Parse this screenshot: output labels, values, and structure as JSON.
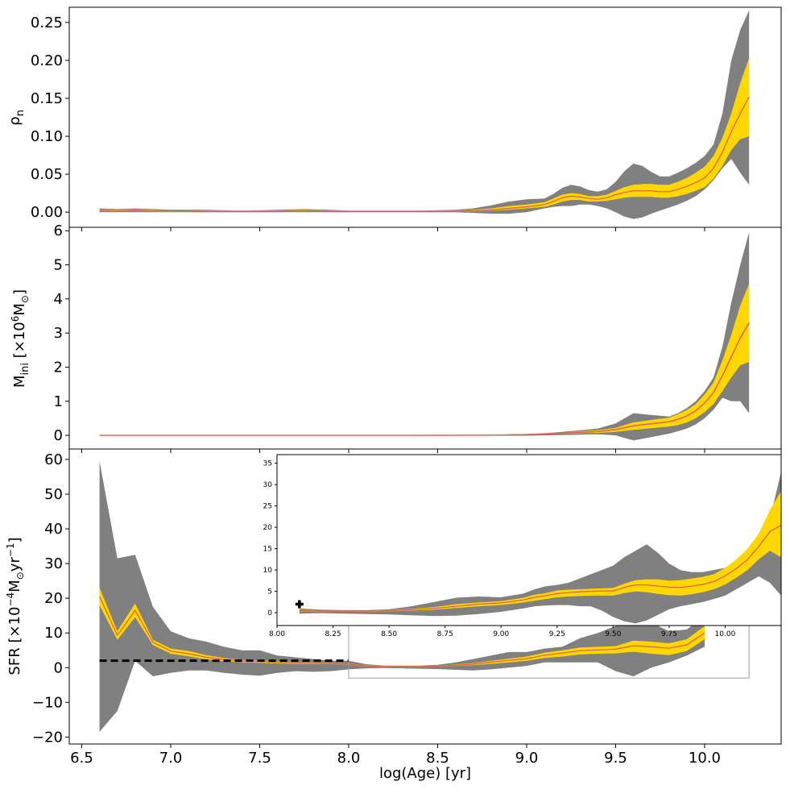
{
  "chart_data": [
    {
      "type": "area",
      "panel": "top",
      "ylabel_base": "ρ",
      "ylabel_sub": "n",
      "ylim": [
        -0.02,
        0.27
      ],
      "yticks": [
        "0.00",
        "0.05",
        "0.10",
        "0.15",
        "0.20",
        "0.25"
      ],
      "x": [
        6.6,
        6.7,
        6.8,
        6.9,
        7.0,
        7.2,
        7.4,
        7.6,
        7.75,
        7.9,
        8.0,
        8.2,
        8.4,
        8.6,
        8.7,
        8.8,
        8.9,
        9.0,
        9.1,
        9.15,
        9.2,
        9.25,
        9.3,
        9.35,
        9.4,
        9.45,
        9.5,
        9.55,
        9.6,
        9.65,
        9.7,
        9.75,
        9.8,
        9.85,
        9.9,
        9.95,
        10.0,
        10.05,
        10.1,
        10.15,
        10.2,
        10.25
      ],
      "series": [
        {
          "name": "outer band upper",
          "values": [
            0.005,
            0.004,
            0.005,
            0.004,
            0.003,
            0.003,
            0.002,
            0.003,
            0.004,
            0.003,
            0.002,
            0.002,
            0.002,
            0.003,
            0.005,
            0.009,
            0.014,
            0.017,
            0.018,
            0.024,
            0.032,
            0.036,
            0.034,
            0.029,
            0.027,
            0.03,
            0.04,
            0.054,
            0.064,
            0.061,
            0.053,
            0.047,
            0.047,
            0.052,
            0.058,
            0.065,
            0.074,
            0.089,
            0.13,
            0.2,
            0.24,
            0.266
          ]
        },
        {
          "name": "inner band upper",
          "values": [
            0.004,
            0.003,
            0.004,
            0.003,
            0.002,
            0.002,
            0.002,
            0.002,
            0.003,
            0.002,
            0.002,
            0.002,
            0.002,
            0.002,
            0.003,
            0.005,
            0.008,
            0.01,
            0.013,
            0.018,
            0.023,
            0.025,
            0.024,
            0.021,
            0.021,
            0.023,
            0.028,
            0.033,
            0.036,
            0.037,
            0.037,
            0.036,
            0.036,
            0.04,
            0.045,
            0.052,
            0.06,
            0.074,
            0.098,
            0.13,
            0.17,
            0.203
          ]
        },
        {
          "name": "median",
          "values": [
            0.003,
            0.002,
            0.003,
            0.002,
            0.002,
            0.001,
            0.001,
            0.001,
            0.002,
            0.001,
            0.001,
            0.001,
            0.001,
            0.001,
            0.002,
            0.003,
            0.005,
            0.007,
            0.01,
            0.014,
            0.019,
            0.021,
            0.02,
            0.018,
            0.017,
            0.019,
            0.023,
            0.026,
            0.028,
            0.028,
            0.028,
            0.027,
            0.027,
            0.03,
            0.034,
            0.039,
            0.045,
            0.058,
            0.079,
            0.106,
            0.13,
            0.152
          ]
        },
        {
          "name": "inner band lower",
          "values": [
            0.002,
            0.001,
            0.002,
            0.001,
            0.001,
            0.001,
            0.001,
            0.001,
            0.001,
            0.001,
            0.001,
            0.001,
            0.001,
            0.001,
            0.001,
            0.002,
            0.003,
            0.005,
            0.007,
            0.01,
            0.014,
            0.016,
            0.016,
            0.014,
            0.014,
            0.015,
            0.017,
            0.019,
            0.02,
            0.02,
            0.02,
            0.019,
            0.019,
            0.021,
            0.024,
            0.028,
            0.033,
            0.044,
            0.061,
            0.082,
            0.096,
            0.1
          ]
        },
        {
          "name": "outer band lower",
          "values": [
            0.0,
            0.0,
            0.0,
            0.0,
            0.0,
            0.0,
            0.0,
            0.0,
            0.0,
            0.0,
            0.0,
            0.0,
            0.0,
            0.0,
            -0.001,
            -0.002,
            -0.002,
            0.0,
            0.005,
            0.007,
            0.008,
            0.008,
            0.01,
            0.01,
            0.008,
            0.005,
            0.0,
            -0.006,
            -0.009,
            -0.007,
            -0.002,
            0.002,
            0.006,
            0.01,
            0.015,
            0.021,
            0.03,
            0.042,
            0.058,
            0.07,
            0.052,
            0.036
          ]
        }
      ]
    },
    {
      "type": "area",
      "panel": "middle",
      "ylabel_base": "M",
      "ylabel_sub": "ini",
      "ylabel_unit": "[×10",
      "ylabel_exp": "6",
      "ylabel_unit2": "M",
      "ylabel_close": "]",
      "ylim": [
        -0.4,
        6.1
      ],
      "yticks": [
        "0",
        "1",
        "2",
        "3",
        "4",
        "5",
        "6"
      ],
      "x": [
        6.6,
        7.0,
        7.5,
        8.0,
        8.5,
        8.8,
        9.0,
        9.1,
        9.2,
        9.3,
        9.4,
        9.5,
        9.6,
        9.7,
        9.8,
        9.85,
        9.9,
        9.95,
        10.0,
        10.05,
        10.1,
        10.15,
        10.2,
        10.25
      ],
      "series": [
        {
          "name": "outer band upper",
          "values": [
            0,
            0,
            0,
            0,
            0.002,
            0.02,
            0.04,
            0.06,
            0.1,
            0.15,
            0.2,
            0.35,
            0.65,
            0.6,
            0.55,
            0.65,
            0.8,
            1.0,
            1.3,
            1.7,
            2.6,
            3.9,
            5.0,
            5.95
          ]
        },
        {
          "name": "inner band upper",
          "values": [
            0,
            0,
            0,
            0,
            0.001,
            0.01,
            0.03,
            0.05,
            0.08,
            0.12,
            0.15,
            0.22,
            0.38,
            0.45,
            0.52,
            0.62,
            0.74,
            0.92,
            1.2,
            1.55,
            2.2,
            2.95,
            3.8,
            4.45
          ]
        },
        {
          "name": "median",
          "values": [
            0,
            0,
            0,
            0,
            0.001,
            0.007,
            0.02,
            0.04,
            0.06,
            0.09,
            0.11,
            0.17,
            0.28,
            0.34,
            0.4,
            0.47,
            0.57,
            0.72,
            0.95,
            1.25,
            1.75,
            2.3,
            2.85,
            3.3
          ]
        },
        {
          "name": "inner band lower",
          "values": [
            0,
            0,
            0,
            0,
            0.0,
            0.004,
            0.012,
            0.025,
            0.04,
            0.06,
            0.07,
            0.1,
            0.16,
            0.21,
            0.26,
            0.3,
            0.38,
            0.5,
            0.68,
            0.92,
            1.3,
            1.7,
            2.05,
            2.15
          ]
        },
        {
          "name": "outer band lower",
          "values": [
            0,
            0,
            0,
            0,
            -0.002,
            -0.01,
            -0.01,
            0.0,
            0.01,
            0.02,
            0.03,
            0.0,
            -0.15,
            -0.05,
            0.05,
            0.12,
            0.2,
            0.32,
            0.5,
            0.75,
            1.1,
            1.0,
            1.0,
            0.65
          ]
        }
      ]
    },
    {
      "type": "area",
      "panel": "bottom",
      "xlabel": "log(Age) [yr]",
      "ylabel": "SFR [×10",
      "ylabel_exp": "−4",
      "ylabel_unit": "M",
      "ylabel_yr": "yr",
      "ylabel_exp2": "−1",
      "ylabel_close": "]",
      "xlim": [
        6.43,
        10.43
      ],
      "ylim": [
        -22,
        63
      ],
      "xticks": [
        "6.5",
        "7.0",
        "7.5",
        "8.0",
        "8.5",
        "9.0",
        "9.5",
        "10.0"
      ],
      "yticks": [
        "−20",
        "−10",
        "0",
        "10",
        "20",
        "30",
        "40",
        "50",
        "60"
      ],
      "reference_line": {
        "y": 2,
        "x_from": 6.6,
        "x_to": 8.0,
        "style": "dashed"
      },
      "x": [
        6.6,
        6.7,
        6.8,
        6.9,
        7.0,
        7.1,
        7.2,
        7.3,
        7.4,
        7.5,
        7.6,
        7.7,
        7.8,
        7.9,
        8.0,
        8.1,
        8.2,
        8.3,
        8.4,
        8.5,
        8.6,
        8.7,
        8.8,
        8.9,
        9.0,
        9.1,
        9.2,
        9.3,
        9.4,
        9.5,
        9.6,
        9.7,
        9.8,
        9.9,
        10.0
      ],
      "series": [
        {
          "name": "outer band upper",
          "values": [
            59.5,
            31.5,
            32.5,
            17.5,
            10.5,
            8.5,
            7.5,
            6.0,
            5.0,
            5.0,
            3.5,
            3.0,
            2.5,
            2.0,
            2.0,
            1.0,
            0.6,
            0.6,
            0.6,
            0.8,
            1.5,
            2.5,
            3.5,
            4.5,
            4.5,
            5.5,
            6.0,
            8.5,
            10.0,
            12.0,
            16.0,
            13.0,
            10.5,
            11.0,
            15.0
          ]
        },
        {
          "name": "inner band upper",
          "values": [
            23.0,
            10.5,
            18.5,
            8.0,
            5.5,
            4.8,
            3.6,
            2.8,
            2.2,
            2.1,
            1.8,
            1.6,
            1.6,
            1.4,
            1.2,
            0.7,
            0.5,
            0.5,
            0.5,
            0.6,
            0.9,
            1.3,
            2.0,
            2.6,
            3.2,
            4.3,
            5.0,
            5.8,
            6.0,
            6.2,
            7.8,
            7.5,
            7.0,
            8.2,
            12.0
          ]
        },
        {
          "name": "median",
          "values": [
            20.5,
            9.3,
            16.5,
            7.3,
            4.8,
            4.0,
            3.0,
            2.4,
            1.9,
            1.8,
            1.5,
            1.4,
            1.4,
            1.2,
            1.0,
            0.5,
            0.35,
            0.35,
            0.35,
            0.45,
            0.7,
            1.0,
            1.6,
            2.1,
            2.6,
            3.6,
            4.2,
            4.9,
            5.1,
            5.3,
            6.3,
            6.0,
            5.6,
            6.6,
            10.0
          ]
        },
        {
          "name": "inner band lower",
          "values": [
            18.0,
            8.0,
            14.5,
            6.5,
            4.0,
            3.3,
            2.4,
            1.9,
            1.5,
            1.4,
            1.2,
            1.1,
            1.1,
            1.0,
            0.8,
            0.3,
            0.2,
            0.2,
            0.2,
            0.3,
            0.5,
            0.7,
            1.1,
            1.5,
            2.0,
            2.8,
            3.2,
            3.8,
            4.0,
            4.1,
            4.6,
            4.0,
            3.6,
            4.8,
            8.2
          ]
        },
        {
          "name": "outer band lower",
          "values": [
            -18.5,
            -12.5,
            2.0,
            -2.5,
            -1.5,
            -0.8,
            -0.8,
            -1.5,
            -2.0,
            -2.3,
            -1.5,
            -1.0,
            -1.2,
            -1.0,
            -0.5,
            -0.2,
            -0.1,
            -0.2,
            -0.3,
            -0.4,
            -0.6,
            -0.8,
            -0.5,
            0.0,
            0.5,
            1.5,
            1.5,
            1.5,
            1.5,
            -1.0,
            -2.5,
            0.0,
            1.5,
            3.5,
            6.0
          ]
        }
      ],
      "inset": {
        "xlim": [
          8.0,
          10.25
        ],
        "ylim": [
          -3,
          37
        ],
        "xticks": [
          "8.00",
          "8.25",
          "8.50",
          "8.75",
          "9.00",
          "9.25",
          "9.50",
          "9.75",
          "10.00"
        ],
        "yticks": [
          "0",
          "5",
          "10",
          "15",
          "20",
          "25",
          "30",
          "35"
        ],
        "marker": {
          "x": 8.1,
          "y": 2,
          "symbol": "+"
        },
        "x": [
          8.1,
          8.2,
          8.3,
          8.4,
          8.5,
          8.6,
          8.7,
          8.8,
          8.9,
          9.0,
          9.1,
          9.15,
          9.2,
          9.25,
          9.3,
          9.35,
          9.4,
          9.45,
          9.5,
          9.55,
          9.6,
          9.65,
          9.7,
          9.75,
          9.8,
          9.85,
          9.9,
          9.95,
          10.0,
          10.05,
          10.1,
          10.15,
          10.2,
          10.25
        ],
        "series": [
          {
            "name": "outer band upper",
            "values": [
              1.0,
              0.7,
              0.6,
              0.6,
              0.8,
              1.5,
              2.5,
              3.5,
              3.8,
              3.6,
              4.5,
              5.5,
              6.2,
              6.5,
              7.0,
              8.0,
              9.0,
              10.0,
              11.0,
              13.0,
              14.5,
              16.0,
              14.0,
              11.5,
              10.0,
              9.5,
              9.5,
              10.0,
              10.5,
              11.5,
              13.0,
              16.0,
              22.0,
              33.0
            ]
          },
          {
            "name": "inner band upper",
            "values": [
              0.7,
              0.5,
              0.5,
              0.5,
              0.6,
              0.9,
              1.3,
              2.0,
              2.4,
              2.7,
              3.5,
              4.2,
              4.6,
              5.2,
              5.4,
              5.5,
              5.6,
              5.7,
              5.8,
              6.8,
              7.6,
              7.8,
              7.8,
              7.5,
              7.6,
              8.0,
              8.4,
              9.0,
              10.5,
              12.5,
              15.0,
              18.5,
              24.0,
              28.5
            ]
          },
          {
            "name": "median",
            "values": [
              0.5,
              0.35,
              0.35,
              0.35,
              0.45,
              0.7,
              1.0,
              1.5,
              2.0,
              2.3,
              3.0,
              3.6,
              4.0,
              4.5,
              4.7,
              4.9,
              5.0,
              5.1,
              5.1,
              5.9,
              6.5,
              6.5,
              6.2,
              6.0,
              5.9,
              6.2,
              6.6,
              7.3,
              8.6,
              10.3,
              12.5,
              15.5,
              19.0,
              20.5
            ]
          },
          {
            "name": "inner band lower",
            "values": [
              0.3,
              0.2,
              0.2,
              0.2,
              0.3,
              0.5,
              0.7,
              1.1,
              1.5,
              1.8,
              2.4,
              2.8,
              3.2,
              3.6,
              3.8,
              3.9,
              4.0,
              4.0,
              4.0,
              4.6,
              5.0,
              4.8,
              4.4,
              4.1,
              4.0,
              4.3,
              4.8,
              5.5,
              6.6,
              8.2,
              10.0,
              12.5,
              14.5,
              13.0
            ]
          },
          {
            "name": "outer band lower",
            "values": [
              -0.2,
              -0.1,
              -0.2,
              -0.3,
              -0.4,
              -0.6,
              -0.8,
              -0.7,
              -0.3,
              0.2,
              1.0,
              1.5,
              1.7,
              1.8,
              1.8,
              1.5,
              1.5,
              0.5,
              -1.0,
              -2.0,
              -2.5,
              -1.8,
              -0.5,
              0.8,
              1.5,
              2.0,
              2.5,
              3.2,
              4.0,
              5.5,
              7.0,
              8.5,
              7.0,
              4.0
            ]
          }
        ]
      }
    }
  ],
  "colors": {
    "outer_band": "#808080",
    "inner_band": "#ffd700",
    "median": "#e05a4f",
    "reference": "#000000",
    "zoom_lines": "#a0a0a0"
  },
  "symbols": {
    "sun": "⊙"
  }
}
